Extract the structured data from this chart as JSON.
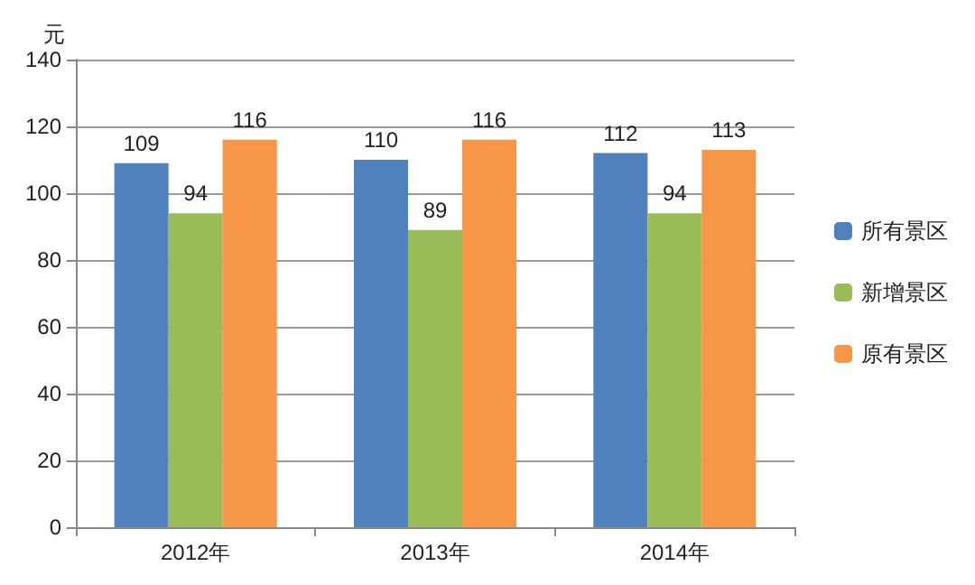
{
  "chart_data": {
    "type": "bar",
    "ylabel": "元",
    "categories": [
      "2012年",
      "2013年",
      "2014年"
    ],
    "series": [
      {
        "name": "所有景区",
        "color": "#4f81bd",
        "values": [
          109,
          110,
          112
        ]
      },
      {
        "name": "新增景区",
        "color": "#9bbb59",
        "values": [
          94,
          89,
          94
        ]
      },
      {
        "name": "原有景区",
        "color": "#f79646",
        "values": [
          116,
          116,
          113
        ]
      }
    ],
    "ylim": [
      0,
      140
    ],
    "yticks": [
      0,
      20,
      40,
      60,
      80,
      100,
      120,
      140
    ],
    "grid": "y",
    "legend": "right",
    "data_labels": true
  }
}
